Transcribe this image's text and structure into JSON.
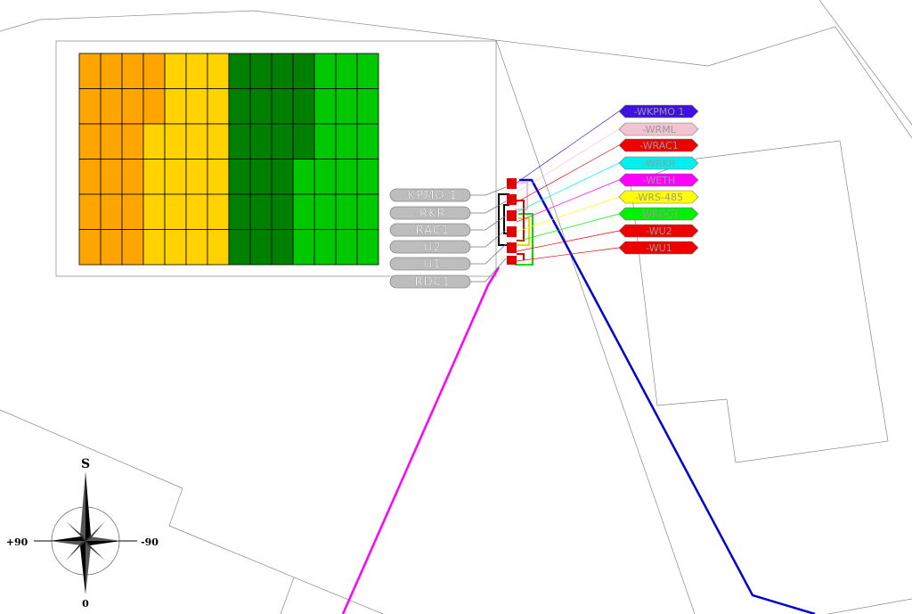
{
  "device_labels": [
    "-KPMO 1",
    "-RKR",
    "-RAC1",
    "-U2",
    "-U1",
    "-RDC1"
  ],
  "cable_labels": [
    "-WKPMO 1",
    "-WRML",
    "-WRAC1",
    "-WRKR",
    "-WETH",
    "-WRS-485",
    "-WRDC1",
    "-WU2",
    "-WU1"
  ],
  "compass": {
    "north": "S",
    "west": "+90",
    "east": "-90",
    "south": "0"
  }
}
